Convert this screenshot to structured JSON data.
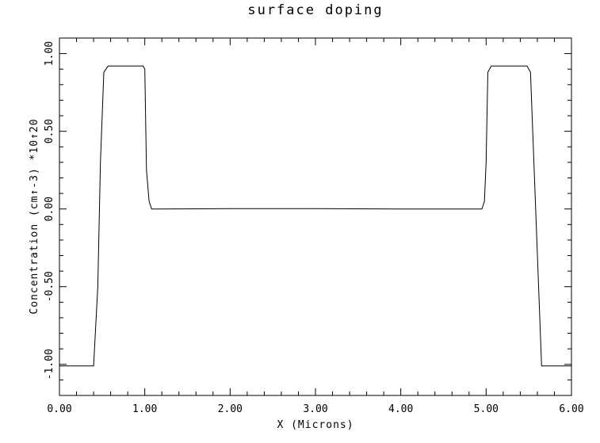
{
  "chart_data": {
    "type": "line",
    "title": "surface doping",
    "xlabel": "X (Microns)",
    "ylabel": "Concentration (cm↑-3) *10↑20",
    "xlim": [
      0.0,
      6.0
    ],
    "ylim": [
      -1.2,
      1.1
    ],
    "x_ticks": [
      0,
      1,
      2,
      3,
      4,
      5,
      6
    ],
    "x_tick_labels": [
      "0.00",
      "1.00",
      "2.00",
      "3.00",
      "4.00",
      "5.00",
      "6.00"
    ],
    "y_ticks": [
      -1,
      -0.5,
      0,
      0.5,
      1
    ],
    "y_tick_labels": [
      "-1.00",
      "-0.50",
      "0.00",
      "0.50",
      "1.00"
    ],
    "grid": false,
    "series": [
      {
        "x": [
          0.0,
          0.4,
          0.45,
          0.48,
          0.52,
          0.57,
          0.98,
          1.0,
          1.02,
          1.05,
          1.08,
          1.12,
          2.0,
          3.0,
          4.0,
          4.95,
          4.98,
          5.0,
          5.02,
          5.06,
          5.1,
          5.48,
          5.52,
          5.56,
          5.65,
          5.9,
          6.0
        ],
        "y": [
          -1.01,
          -1.01,
          -0.5,
          0.3,
          0.88,
          0.92,
          0.92,
          0.9,
          0.25,
          0.05,
          0.0,
          0.0,
          0.002,
          0.002,
          0.0,
          0.0,
          0.05,
          0.3,
          0.88,
          0.92,
          0.92,
          0.92,
          0.88,
          0.3,
          -1.01,
          -1.01,
          -1.01
        ]
      }
    ]
  }
}
